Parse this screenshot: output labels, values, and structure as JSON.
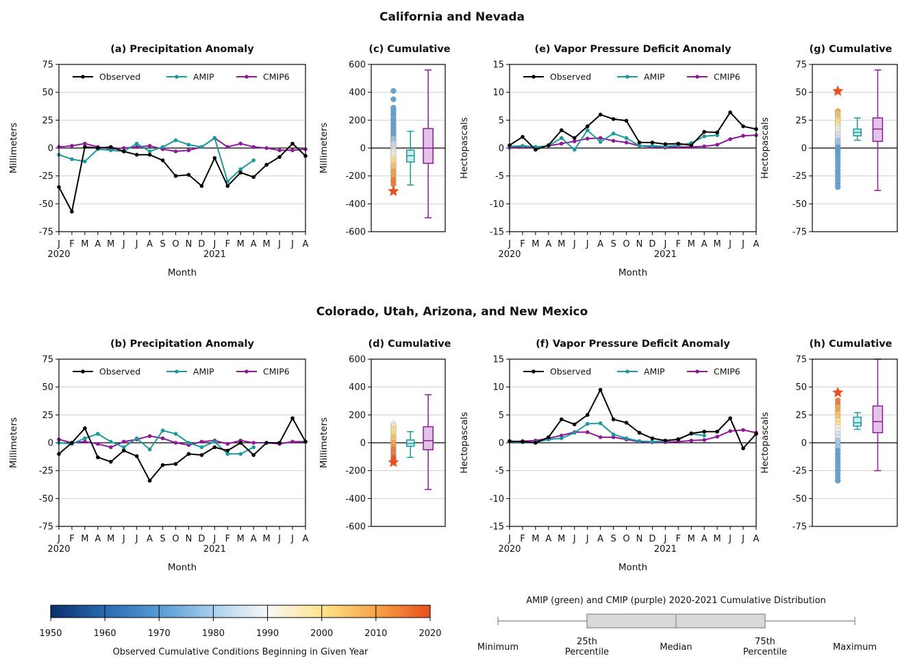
{
  "colors": {
    "observed": "#000000",
    "amip": "#1a9a9a",
    "cmip6": "#8e1a9a"
  },
  "sections": {
    "top": "California and Nevada",
    "bottom": "Colorado, Utah, Arizona, and New Mexico"
  },
  "month_ticks": [
    "J",
    "F",
    "M",
    "A",
    "M",
    "J",
    "J",
    "A",
    "S",
    "O",
    "N",
    "D",
    "J",
    "F",
    "M",
    "A",
    "M",
    "J",
    "J",
    "A"
  ],
  "year_labels": [
    "2020",
    "2021"
  ],
  "chart_data": [
    {
      "id": "a",
      "type": "line",
      "title": "(a) Precipitation Anomaly",
      "ylabel": "Millimeters",
      "xlabel": "Month",
      "ylim": [
        -75,
        75
      ],
      "yticks": [
        75,
        50,
        25,
        0,
        -25,
        -50,
        -75
      ],
      "series": [
        {
          "name": "Observed",
          "values": [
            -35,
            -57,
            1,
            0,
            1,
            -3,
            -6,
            -6,
            -11,
            -25,
            -24,
            -34,
            -9,
            -34,
            -22,
            -26,
            -15,
            -8,
            4,
            -7
          ]
        },
        {
          "name": "AMIP",
          "values": [
            -6,
            -10,
            -12,
            -1,
            -2,
            -3,
            4,
            -3,
            1,
            7,
            3,
            1,
            9,
            -30,
            -19,
            -11,
            null,
            null,
            null,
            null
          ]
        },
        {
          "name": "CMIP6",
          "values": [
            1,
            2,
            4,
            1,
            -1,
            0,
            1,
            2,
            -1,
            -3,
            -2,
            1,
            9,
            1,
            4,
            1,
            0,
            -2,
            -2,
            -1
          ]
        }
      ]
    },
    {
      "id": "c",
      "type": "box",
      "title": "(c) Cumulative",
      "ylabel": "Millimeters",
      "ylim": [
        -600,
        600
      ],
      "yticks": [
        600,
        400,
        200,
        0,
        -200,
        -400,
        -600
      ],
      "observed_star": -310,
      "dots": [
        410,
        350,
        290,
        270,
        250,
        235,
        210,
        195,
        180,
        165,
        150,
        135,
        120,
        105,
        95,
        85,
        70,
        60,
        50,
        40,
        30,
        20,
        10,
        0,
        -10,
        -20,
        -30,
        -45,
        -60,
        -75,
        -90,
        -105,
        -120,
        -135,
        -150,
        -165,
        -180,
        -195,
        -210,
        -225,
        -240,
        -260
      ],
      "amip": {
        "min": -265,
        "q1": -100,
        "median": -55,
        "q3": -15,
        "max": 120
      },
      "cmip6": {
        "min": -500,
        "q1": -110,
        "median": 0,
        "q3": 140,
        "max": 560
      }
    },
    {
      "id": "e",
      "type": "line",
      "title": "(e) Vapor Pressure Deficit Anomaly",
      "ylabel": "Hectopascals",
      "xlabel": "Month",
      "ylim": [
        -15,
        15
      ],
      "yticks": [
        15,
        10,
        5,
        0,
        -5,
        -10,
        -15
      ],
      "series": [
        {
          "name": "Observed",
          "values": [
            0.5,
            2,
            -0.3,
            0.5,
            3.2,
            1.8,
            3.9,
            6,
            5.2,
            4.9,
            1,
            1,
            0.7,
            0.8,
            0.5,
            2.9,
            2.8,
            6.4,
            3.9,
            3.4
          ]
        },
        {
          "name": "AMIP",
          "values": [
            0.3,
            0.4,
            0.2,
            0.4,
            1.8,
            -0.3,
            3.2,
            1.1,
            2.6,
            1.8,
            0.4,
            0.4,
            0.3,
            0.5,
            0.9,
            2.1,
            2.3,
            null,
            null,
            null
          ]
        },
        {
          "name": "CMIP6",
          "values": [
            0.1,
            0.2,
            0.2,
            0.4,
            0.8,
            1.2,
            1.7,
            1.8,
            1.3,
            1,
            0.4,
            0.2,
            0.1,
            0.2,
            0.2,
            0.3,
            0.6,
            1.6,
            2.2,
            2.3
          ]
        }
      ]
    },
    {
      "id": "g",
      "type": "box",
      "title": "(g) Cumulative",
      "ylabel": "Hectopascals",
      "ylim": [
        -75,
        75
      ],
      "yticks": [
        75,
        50,
        25,
        0,
        -25,
        -50,
        -75
      ],
      "observed_star": 51,
      "dots": [
        33,
        31,
        29,
        27,
        25,
        23,
        21,
        19,
        17,
        15,
        13,
        11,
        9,
        7,
        5,
        3,
        1,
        -1,
        -3,
        -5,
        -8,
        -11,
        -14,
        -17,
        -20,
        -23,
        -26,
        -29,
        -32,
        -35
      ],
      "amip": {
        "min": 7,
        "q1": 11,
        "median": 14,
        "q3": 17,
        "max": 27
      },
      "cmip6": {
        "min": -38,
        "q1": 6,
        "median": 17,
        "q3": 27,
        "max": 70
      }
    },
    {
      "id": "b",
      "type": "line",
      "title": "(b) Precipitation Anomaly",
      "ylabel": "Millimeters",
      "xlabel": "Month",
      "ylim": [
        -75,
        75
      ],
      "yticks": [
        75,
        50,
        25,
        0,
        -25,
        -50,
        -75
      ],
      "series": [
        {
          "name": "Observed",
          "values": [
            -10,
            0,
            13,
            -13,
            -17,
            -7,
            -12,
            -34,
            -20,
            -19,
            -10,
            -11,
            -4,
            -7,
            0,
            -11,
            0,
            0,
            22,
            1
          ]
        },
        {
          "name": "AMIP",
          "values": [
            0,
            -1,
            4,
            8,
            1,
            -4,
            4,
            -6,
            11,
            8,
            0,
            -4,
            1,
            -10,
            -10,
            -4,
            null,
            null,
            null,
            null
          ]
        },
        {
          "name": "CMIP6",
          "values": [
            3,
            0,
            1,
            -1,
            -4,
            1,
            3,
            6,
            4,
            0,
            -2,
            1,
            2,
            -1,
            2,
            0,
            0,
            -1,
            1,
            1
          ]
        }
      ]
    },
    {
      "id": "d",
      "type": "box",
      "title": "(d) Cumulative",
      "ylabel": "Millimeters",
      "ylim": [
        -600,
        600
      ],
      "yticks": [
        600,
        400,
        200,
        0,
        -200,
        -400,
        -600
      ],
      "observed_star": -140,
      "dots": [
        135,
        120,
        105,
        90,
        75,
        60,
        45,
        30,
        15,
        0,
        -15,
        -30,
        -45,
        -60,
        -75,
        -90,
        -105,
        -120
      ],
      "amip": {
        "min": -105,
        "q1": -25,
        "median": -5,
        "q3": 20,
        "max": 80
      },
      "cmip6": {
        "min": -335,
        "q1": -50,
        "median": 15,
        "q3": 115,
        "max": 345
      }
    },
    {
      "id": "f",
      "type": "line",
      "title": "(f) Vapor Pressure Deficit Anomaly",
      "ylabel": "Hectopascals",
      "xlabel": "Month",
      "ylim": [
        -15,
        15
      ],
      "yticks": [
        15,
        10,
        5,
        0,
        -5,
        -10,
        -15
      ],
      "series": [
        {
          "name": "Observed",
          "values": [
            0.3,
            0.2,
            0,
            1,
            4.2,
            3.3,
            5,
            9.5,
            4.2,
            3.6,
            1.8,
            0.8,
            0.4,
            0.6,
            1.7,
            2,
            2,
            4.4,
            -1,
            1.6
          ]
        },
        {
          "name": "AMIP",
          "values": [
            0.2,
            0.1,
            0.1,
            0.6,
            0.8,
            1.8,
            3.4,
            3.5,
            1.5,
            0.8,
            0.3,
            0.2,
            0.3,
            0.7,
            1.6,
            1.3,
            null,
            null,
            null,
            null
          ]
        },
        {
          "name": "CMIP6",
          "values": [
            0.2,
            0.3,
            0.4,
            0.8,
            1.3,
            1.9,
            1.9,
            1,
            1,
            0.6,
            0.2,
            0.1,
            0.1,
            0.2,
            0.4,
            0.5,
            1.1,
            2.1,
            2.3,
            1.8
          ]
        }
      ]
    },
    {
      "id": "h",
      "type": "box",
      "title": "(h) Cumulative",
      "ylabel": "Hectopascals",
      "ylim": [
        -75,
        75
      ],
      "yticks": [
        75,
        50,
        25,
        0,
        -25,
        -50,
        -75
      ],
      "observed_star": 45,
      "dots": [
        38,
        35,
        32,
        29,
        26,
        23,
        20,
        17,
        14,
        11,
        8,
        5,
        2,
        -1,
        -4,
        -7,
        -10,
        -13,
        -16,
        -19,
        -22,
        -25,
        -28,
        -31,
        -34
      ],
      "amip": {
        "min": 12,
        "q1": 15,
        "median": 18,
        "q3": 23,
        "max": 27
      },
      "cmip6": {
        "min": -25,
        "q1": 9,
        "median": 19,
        "q3": 33,
        "max": 75
      }
    }
  ],
  "colorbar": {
    "ticks": [
      "1950",
      "1960",
      "1970",
      "1980",
      "1990",
      "2000",
      "2010",
      "2020"
    ],
    "label": "Observed Cumulative Conditions Beginning in Given Year"
  },
  "schematic": {
    "title": "AMIP (green) and CMIP (purple) 2020-2021 Cumulative Distribution",
    "minimum": "Minimum",
    "q25_line1": "25th",
    "q25_line2": "Percentile",
    "median": "Median",
    "q75_line1": "75th",
    "q75_line2": "Percentile",
    "maximum": "Maximum"
  }
}
